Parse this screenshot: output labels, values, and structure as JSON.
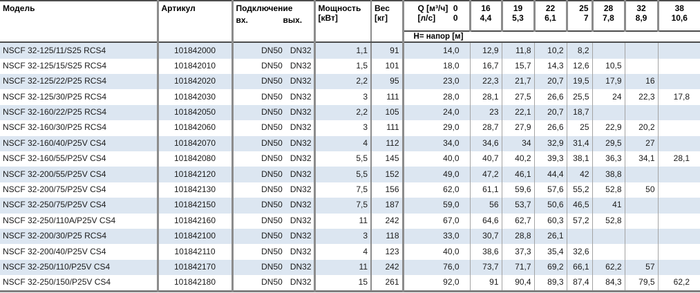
{
  "table": {
    "header": {
      "model": "Модель",
      "article": "Артикул",
      "connection": "Подключение",
      "inlet": "вх.",
      "outlet": "вых.",
      "power_line1": "Мощность",
      "power_line2": "[кВт]",
      "weight_line1": "Вес",
      "weight_line2": "[кг]",
      "q_label": "Q [м³/ч]",
      "q_zero": "0",
      "ls_label": "[л/с]",
      "ls_zero": "0",
      "head_label": "Н= напор [м]",
      "flows": [
        {
          "m3h": "16",
          "ls": "4,4"
        },
        {
          "m3h": "19",
          "ls": "5,3"
        },
        {
          "m3h": "22",
          "ls": "6,1"
        },
        {
          "m3h": "25",
          "ls": "7"
        },
        {
          "m3h": "28",
          "ls": "7,8"
        },
        {
          "m3h": "32",
          "ls": "8,9"
        },
        {
          "m3h": "38",
          "ls": "10,6"
        }
      ]
    },
    "rows": [
      {
        "model": "NSCF 32-125/11/S25 RCS4",
        "article": "101842000",
        "inlet": "DN50",
        "outlet": "DN32",
        "power": "1,1",
        "weight": "91",
        "heads": [
          "14,0",
          "12,9",
          "11,8",
          "10,2",
          "8,2",
          "",
          "",
          ""
        ]
      },
      {
        "model": "NSCF 32-125/15/S25 RCS4",
        "article": "101842010",
        "inlet": "DN50",
        "outlet": "DN32",
        "power": "1,5",
        "weight": "101",
        "heads": [
          "18,0",
          "16,7",
          "15,7",
          "14,3",
          "12,6",
          "10,5",
          "",
          ""
        ]
      },
      {
        "model": "NSCF 32-125/22/P25 RCS4",
        "article": "101842020",
        "inlet": "DN50",
        "outlet": "DN32",
        "power": "2,2",
        "weight": "95",
        "heads": [
          "23,0",
          "22,3",
          "21,7",
          "20,7",
          "19,5",
          "17,9",
          "16",
          ""
        ]
      },
      {
        "model": "NSCF 32-125/30/P25 RCS4",
        "article": "101842030",
        "inlet": "DN50",
        "outlet": "DN32",
        "power": "3",
        "weight": "111",
        "heads": [
          "28,0",
          "28,1",
          "27,5",
          "26,6",
          "25,5",
          "24",
          "22,3",
          "17,8"
        ]
      },
      {
        "model": "NSCF 32-160/22/P25 RCS4",
        "article": "101842050",
        "inlet": "DN50",
        "outlet": "DN32",
        "power": "2,2",
        "weight": "105",
        "heads": [
          "24,0",
          "23",
          "22,1",
          "20,7",
          "18,7",
          "",
          "",
          ""
        ]
      },
      {
        "model": "NSCF 32-160/30/P25 RCS4",
        "article": "101842060",
        "inlet": "DN50",
        "outlet": "DN32",
        "power": "3",
        "weight": "111",
        "heads": [
          "29,0",
          "28,7",
          "27,9",
          "26,6",
          "25",
          "22,9",
          "20,2",
          ""
        ]
      },
      {
        "model": "NSCF 32-160/40/P25V CS4",
        "article": "101842070",
        "inlet": "DN50",
        "outlet": "DN32",
        "power": "4",
        "weight": "112",
        "heads": [
          "34,0",
          "34,6",
          "34",
          "32,9",
          "31,4",
          "29,5",
          "27",
          ""
        ]
      },
      {
        "model": "NSCF 32-160/55/P25V CS4",
        "article": "101842080",
        "inlet": "DN50",
        "outlet": "DN32",
        "power": "5,5",
        "weight": "145",
        "heads": [
          "40,0",
          "40,7",
          "40,2",
          "39,3",
          "38,1",
          "36,3",
          "34,1",
          "28,1"
        ]
      },
      {
        "model": "NSCF 32-200/55/P25V CS4",
        "article": "101842120",
        "inlet": "DN50",
        "outlet": "DN32",
        "power": "5,5",
        "weight": "152",
        "heads": [
          "49,0",
          "47,2",
          "46,1",
          "44,4",
          "42",
          "38,8",
          "",
          ""
        ]
      },
      {
        "model": "NSCF 32-200/75/P25V CS4",
        "article": "101842130",
        "inlet": "DN50",
        "outlet": "DN32",
        "power": "7,5",
        "weight": "156",
        "heads": [
          "62,0",
          "61,1",
          "59,6",
          "57,6",
          "55,2",
          "52,8",
          "50",
          ""
        ]
      },
      {
        "model": "NSCF 32-250/75/P25V CS4",
        "article": "101842150",
        "inlet": "DN50",
        "outlet": "DN32",
        "power": "7,5",
        "weight": "187",
        "heads": [
          "59,0",
          "56",
          "53,7",
          "50,6",
          "46,5",
          "41",
          "",
          ""
        ]
      },
      {
        "model": "NSCF 32-250/110A/P25V CS4",
        "article": "101842160",
        "inlet": "DN50",
        "outlet": "DN32",
        "power": "11",
        "weight": "242",
        "heads": [
          "67,0",
          "64,6",
          "62,7",
          "60,3",
          "57,2",
          "52,8",
          "",
          ""
        ]
      },
      {
        "model": "NSCF 32-200/30/P25 RCS4",
        "article": "101842100",
        "inlet": "DN50",
        "outlet": "DN32",
        "power": "3",
        "weight": "118",
        "heads": [
          "33,0",
          "30,7",
          "28,8",
          "26,1",
          "",
          "",
          "",
          ""
        ]
      },
      {
        "model": "NSCF 32-200/40/P25V CS4",
        "article": "101842110",
        "inlet": "DN50",
        "outlet": "DN32",
        "power": "4",
        "weight": "123",
        "heads": [
          "40,0",
          "38,6",
          "37,3",
          "35,4",
          "32,6",
          "",
          "",
          ""
        ]
      },
      {
        "model": "NSCF 32-250/110/P25V CS4",
        "article": "101842170",
        "inlet": "DN50",
        "outlet": "DN32",
        "power": "11",
        "weight": "242",
        "heads": [
          "76,0",
          "73,7",
          "71,7",
          "69,2",
          "66,1",
          "62,2",
          "57",
          ""
        ]
      },
      {
        "model": "NSCF 32-250/150/P25V CS4",
        "article": "101842180",
        "inlet": "DN50",
        "outlet": "DN32",
        "power": "15",
        "weight": "261",
        "heads": [
          "92,0",
          "91",
          "90,4",
          "89,3",
          "87,4",
          "84,3",
          "79,5",
          "62,2"
        ]
      }
    ]
  },
  "colors": {
    "row_stripe": "#dce6f1",
    "grid_major": "#8c8c8c",
    "grid_minor": "#a3a3a3",
    "rule_dark": "#4d4d4d",
    "rule_bottom": "#7f7f7f",
    "text": "#1a1a1a"
  }
}
